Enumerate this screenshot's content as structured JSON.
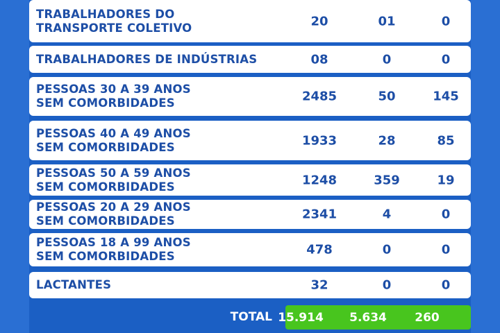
{
  "rows": [
    {
      "label1": "TRABALHADORES DO",
      "label2": "TRANSPORTE COLETIVO",
      "v1": "20",
      "v2": "01",
      "v3": "0"
    },
    {
      "label1": "TRABALHADORES DE INDÚSTRIAS",
      "label2": "",
      "v1": "08",
      "v2": "0",
      "v3": "0"
    },
    {
      "label1": "PESSOAS 30 A 39 ANOS",
      "label2": "SEM COMORBIDADES",
      "v1": "2485",
      "v2": "50",
      "v3": "145"
    },
    {
      "label1": "PESSOAS 40 A 49 ANOS",
      "label2": "SEM COMORBIDADES",
      "v1": "1933",
      "v2": "28",
      "v3": "85"
    },
    {
      "label1": "PESSOAS 50 A 59 ANOS",
      "label2": "SEM COMORBIDADES",
      "v1": "1248",
      "v2": "359",
      "v3": "19"
    },
    {
      "label1": "PESSOAS 20 A 29 ANOS",
      "label2": "SEM COMORBIDADES",
      "v1": "2341",
      "v2": "4",
      "v3": "0"
    },
    {
      "label1": "PESSOAS 18 A 99 ANOS",
      "label2": "SEM COMORBIDADES",
      "v1": "478",
      "v2": "0",
      "v3": "0"
    },
    {
      "label1": "LACTANTES",
      "label2": "",
      "v1": "32",
      "v2": "0",
      "v3": "0"
    }
  ],
  "total": {
    "label": "TOTAL",
    "v1": "15.914",
    "v2": "5.634",
    "v3": "260"
  },
  "colors": {
    "background": "#1b5fc4",
    "row": "#ffffff",
    "text": "#1d4ea6",
    "total": "#48c51e"
  }
}
